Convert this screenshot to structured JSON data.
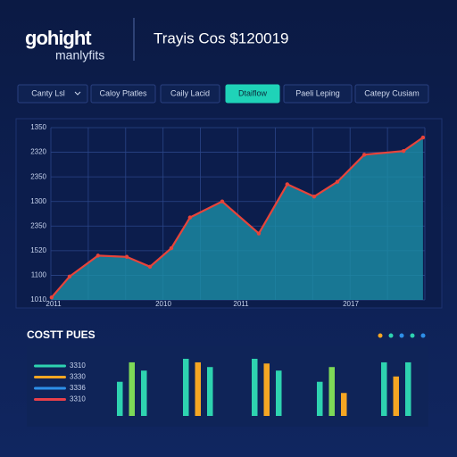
{
  "logo": {
    "brand": "gohight",
    "tagline": "manlyfits"
  },
  "header": {
    "title": "Trayis Cos $120019"
  },
  "tabs": [
    {
      "label": "Canty Lsl",
      "active": false
    },
    {
      "label": "Caloy Ptatles",
      "active": false
    },
    {
      "label": "Caily Lacid",
      "active": false
    },
    {
      "label": "Dtaiflow",
      "active": true
    },
    {
      "label": "Paeli Leping",
      "active": false
    },
    {
      "label": "Catepy Cusiam",
      "active": false
    }
  ],
  "chart_data": [
    {
      "type": "area",
      "y_labels": [
        "1010",
        "1100",
        "1520",
        "2350",
        "1300",
        "2350",
        "2320",
        "1350"
      ],
      "x_labels": [
        "2011",
        "2010",
        "2011",
        "2017"
      ],
      "xlim": [
        0,
        100
      ],
      "ylim": [
        0,
        7
      ],
      "grid": true,
      "x": [
        0.2,
        5,
        12.6,
        20.3,
        26.5,
        32.2,
        37.2,
        45.8,
        55.6,
        63.2,
        70.4,
        76.6,
        83.8,
        94.3,
        99.5
      ],
      "series": [
        {
          "color": "#e8443a",
          "fill": "#1b8ea6",
          "values": [
            0.1,
            0.95,
            1.8,
            1.75,
            1.35,
            2.1,
            3.35,
            4.0,
            2.7,
            4.7,
            4.2,
            4.8,
            5.9,
            6.05,
            6.6
          ]
        }
      ]
    },
    {
      "type": "grouped-bar",
      "title": "COSTT PUES",
      "indicator_colors": [
        "#f5a623",
        "#2ed3b0",
        "#2e8fe8",
        "#2ed3b0",
        "#2e8fe8"
      ],
      "legend": [
        {
          "label": "3310",
          "color": "#2ed3b0"
        },
        {
          "label": "3330",
          "color": "#f5a623"
        },
        {
          "label": "3336",
          "color": "#2e8fe8"
        },
        {
          "label": "3310",
          "color": "#e8404a"
        }
      ],
      "ylim": [
        0,
        100
      ],
      "groups": [
        {
          "values": [
            58,
            91,
            77
          ],
          "colors": [
            "#2ed3b0",
            "#7ed957",
            "#2ed3b0"
          ]
        },
        {
          "values": [
            97,
            91,
            83
          ],
          "colors": [
            "#2ed3b0",
            "#f5a623",
            "#2ed3b0"
          ]
        },
        {
          "values": [
            97,
            89,
            77
          ],
          "colors": [
            "#2ed3b0",
            "#f5a623",
            "#2ed3b0"
          ]
        },
        {
          "values": [
            58,
            83,
            39
          ],
          "colors": [
            "#2ed3b0",
            "#7ed957",
            "#f5a623"
          ]
        },
        {
          "values": [
            91,
            67,
            91
          ],
          "colors": [
            "#2ed3b0",
            "#f5a623",
            "#2ed3b0"
          ]
        }
      ]
    }
  ]
}
